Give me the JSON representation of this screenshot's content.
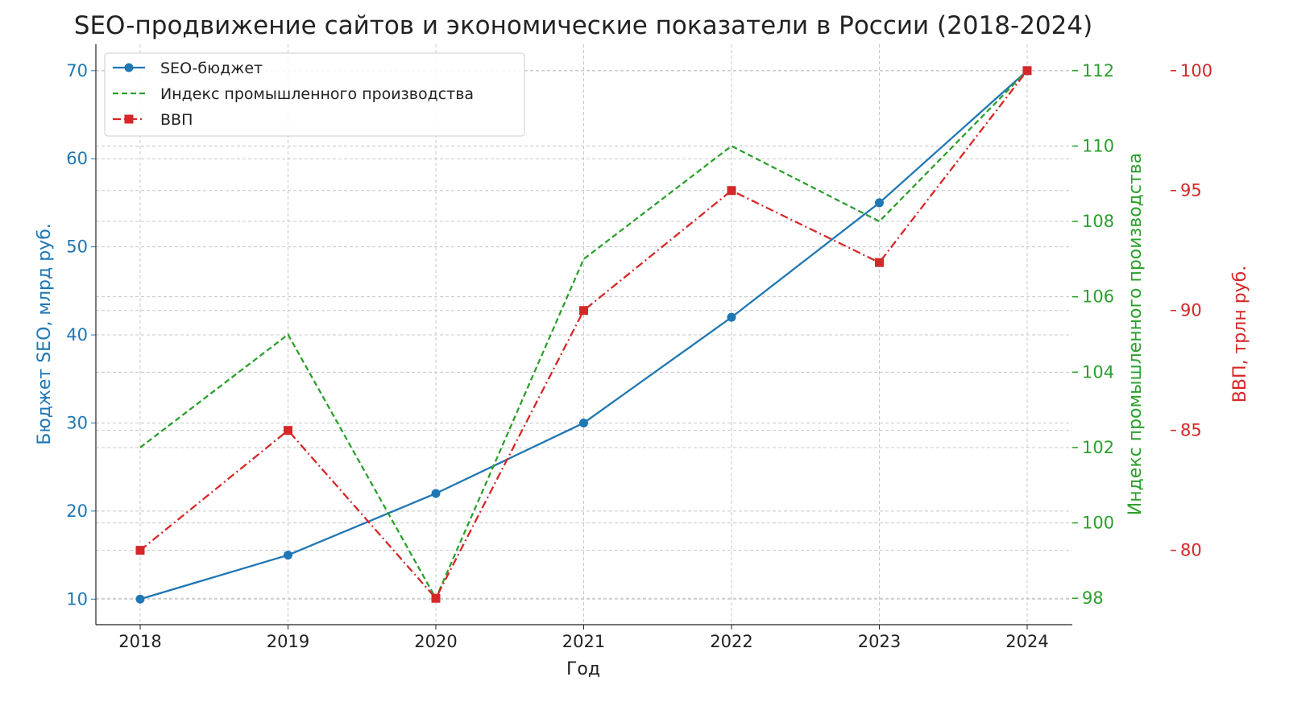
{
  "chart_data": {
    "type": "line",
    "title": "SEO-продвижение сайтов и экономические показатели в России (2018-2024)",
    "xlabel": "Год",
    "x": [
      2018,
      2019,
      2020,
      2021,
      2022,
      2023,
      2024
    ],
    "x_tick_labels": [
      "2018",
      "2019",
      "2020",
      "2021",
      "2022",
      "2023",
      "2024"
    ],
    "grid": true,
    "legend_position": "top-left",
    "axes": [
      {
        "id": "left",
        "label": "Бюджет SEO, млрд руб.",
        "color": "#1f77b4",
        "ylim": [
          7.1,
          73.0
        ],
        "ticks": [
          10,
          20,
          30,
          40,
          50,
          60,
          70
        ]
      },
      {
        "id": "right1",
        "label": "Индекс промышленного производства",
        "color": "#2ca02c",
        "ylim": [
          97.3,
          112.7
        ],
        "ticks": [
          98,
          100,
          102,
          104,
          106,
          108,
          110,
          112
        ]
      },
      {
        "id": "right2",
        "label": "ВВП, трлн руб.",
        "color": "#d62728",
        "ylim": [
          76.9,
          101.1
        ],
        "ticks": [
          80,
          85,
          90,
          95,
          100
        ]
      }
    ],
    "series": [
      {
        "name": "SEO-бюджет",
        "axis": "left",
        "color": "#1f77b4",
        "style": "solid",
        "marker": "circle",
        "values": [
          10,
          15,
          22,
          30,
          42,
          55,
          70
        ]
      },
      {
        "name": "Индекс промышленного производства",
        "axis": "right1",
        "color": "#2ca02c",
        "style": "dashed",
        "marker": "none",
        "values": [
          102,
          105,
          98,
          107,
          110,
          108,
          112
        ]
      },
      {
        "name": "ВВП",
        "axis": "right2",
        "color": "#d62728",
        "style": "dashdot",
        "marker": "square",
        "values": [
          80,
          85,
          78,
          90,
          95,
          92,
          100
        ]
      }
    ]
  }
}
